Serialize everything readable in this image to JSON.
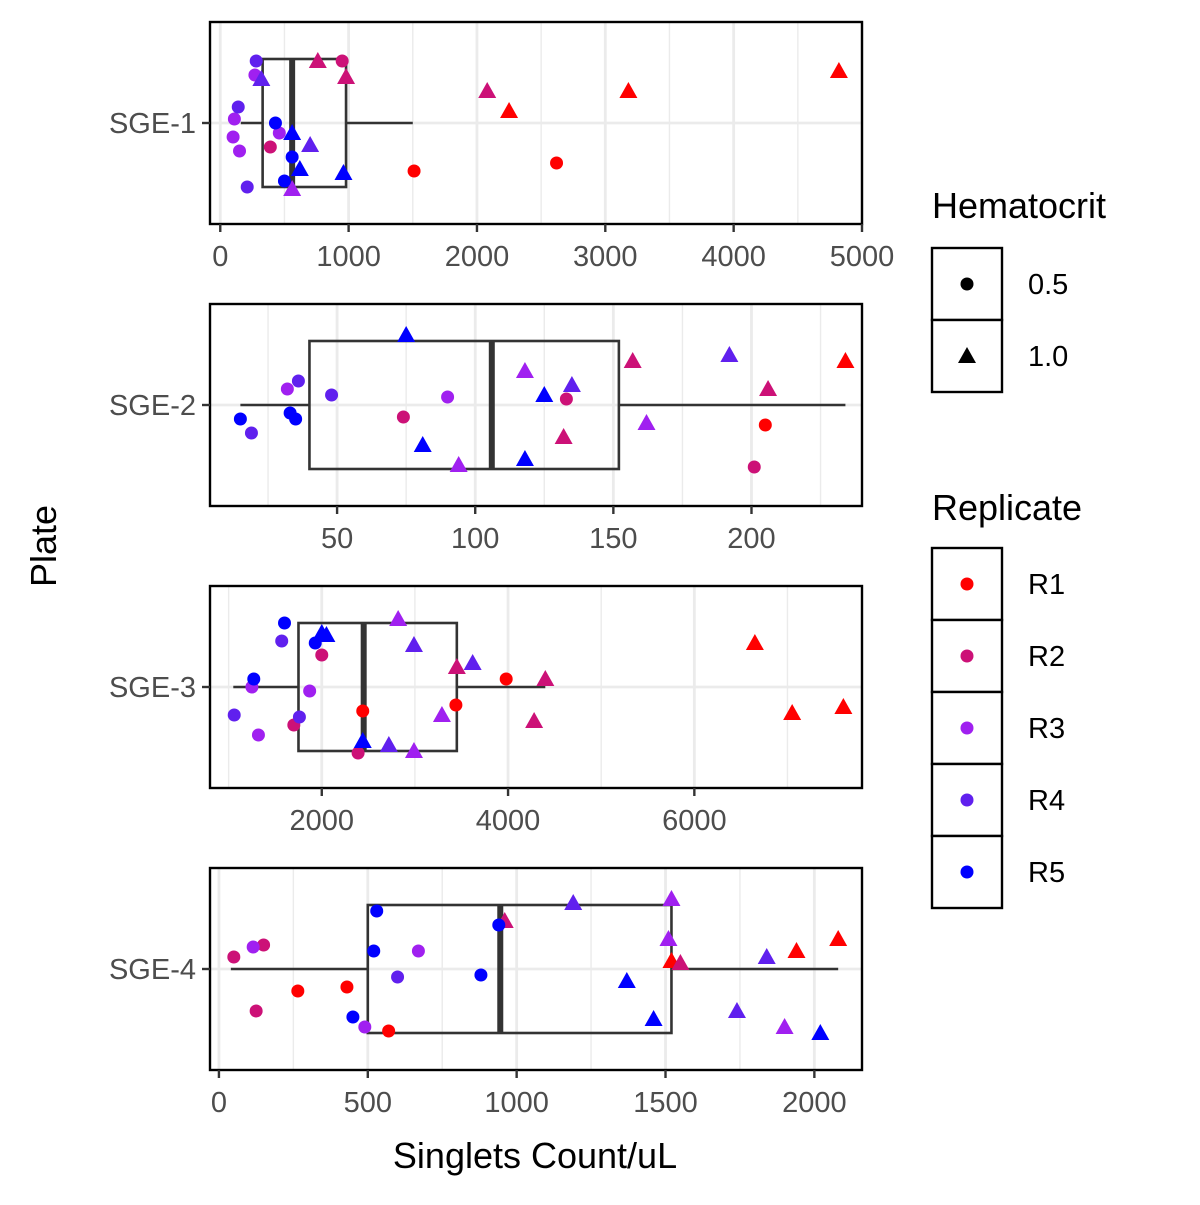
{
  "chart_data": {
    "type": "boxplot",
    "xlabel": "Singlets Count/uL",
    "ylabel": "Plate",
    "grid": true,
    "legend_position": "right",
    "legends": [
      {
        "title": "Hematocrit",
        "entries": [
          {
            "label": "0.5",
            "shape": "circle"
          },
          {
            "label": "1.0",
            "shape": "triangle"
          }
        ]
      },
      {
        "title": "Replicate",
        "entries": [
          {
            "label": "R1",
            "color": "#ff0000"
          },
          {
            "label": "R2",
            "color": "#cc1177"
          },
          {
            "label": "R3",
            "color": "#a020f0"
          },
          {
            "label": "R4",
            "color": "#6020ee"
          },
          {
            "label": "R5",
            "color": "#0000ff"
          }
        ]
      }
    ],
    "panels": [
      {
        "category": "SGE-1",
        "xlim": [
          -80,
          5000
        ],
        "x_ticks": [
          0,
          1000,
          2000,
          3000,
          4000,
          5000
        ],
        "x_tick_labels": [
          "0",
          "1000",
          "2000",
          "3000",
          "4000",
          "5000"
        ],
        "box": {
          "whisker_low": 160,
          "q1": 330,
          "median": 560,
          "q3": 980,
          "whisker_high": 1500
        },
        "points": [
          {
            "x": 4820,
            "jitter": 0.26,
            "hct": "1.0",
            "rep": "R1"
          },
          {
            "x": 3180,
            "jitter": 0.16,
            "hct": "1.0",
            "rep": "R1"
          },
          {
            "x": 2250,
            "jitter": 0.06,
            "hct": "1.0",
            "rep": "R1"
          },
          {
            "x": 1510,
            "jitter": -0.24,
            "hct": "0.5",
            "rep": "R1"
          },
          {
            "x": 2620,
            "jitter": -0.2,
            "hct": "0.5",
            "rep": "R1"
          },
          {
            "x": 2080,
            "jitter": 0.16,
            "hct": "1.0",
            "rep": "R2"
          },
          {
            "x": 760,
            "jitter": 0.31,
            "hct": "1.0",
            "rep": "R2"
          },
          {
            "x": 950,
            "jitter": 0.31,
            "hct": "0.5",
            "rep": "R2"
          },
          {
            "x": 980,
            "jitter": 0.23,
            "hct": "1.0",
            "rep": "R2"
          },
          {
            "x": 390,
            "jitter": -0.12,
            "hct": "0.5",
            "rep": "R2"
          },
          {
            "x": 270,
            "jitter": 0.24,
            "hct": "0.5",
            "rep": "R3"
          },
          {
            "x": 110,
            "jitter": 0.02,
            "hct": "0.5",
            "rep": "R3"
          },
          {
            "x": 100,
            "jitter": -0.07,
            "hct": "0.5",
            "rep": "R3"
          },
          {
            "x": 150,
            "jitter": -0.14,
            "hct": "0.5",
            "rep": "R3"
          },
          {
            "x": 460,
            "jitter": -0.05,
            "hct": "0.5",
            "rep": "R3"
          },
          {
            "x": 560,
            "jitter": -0.33,
            "hct": "1.0",
            "rep": "R3"
          },
          {
            "x": 280,
            "jitter": 0.31,
            "hct": "0.5",
            "rep": "R4"
          },
          {
            "x": 320,
            "jitter": 0.22,
            "hct": "1.0",
            "rep": "R4"
          },
          {
            "x": 140,
            "jitter": 0.08,
            "hct": "0.5",
            "rep": "R4"
          },
          {
            "x": 210,
            "jitter": -0.32,
            "hct": "0.5",
            "rep": "R4"
          },
          {
            "x": 700,
            "jitter": -0.11,
            "hct": "1.0",
            "rep": "R4"
          },
          {
            "x": 430,
            "jitter": 0.0,
            "hct": "0.5",
            "rep": "R5"
          },
          {
            "x": 560,
            "jitter": -0.05,
            "hct": "1.0",
            "rep": "R5"
          },
          {
            "x": 560,
            "jitter": -0.17,
            "hct": "0.5",
            "rep": "R5"
          },
          {
            "x": 500,
            "jitter": -0.29,
            "hct": "0.5",
            "rep": "R5"
          },
          {
            "x": 620,
            "jitter": -0.23,
            "hct": "1.0",
            "rep": "R5"
          },
          {
            "x": 960,
            "jitter": -0.25,
            "hct": "1.0",
            "rep": "R5"
          }
        ]
      },
      {
        "category": "SGE-2",
        "xlim": [
          4,
          240
        ],
        "x_ticks": [
          50,
          100,
          150,
          200
        ],
        "x_tick_labels": [
          "50",
          "100",
          "150",
          "200"
        ],
        "box": {
          "whisker_low": 15,
          "q1": 40,
          "median": 106,
          "q3": 152,
          "whisker_high": 234
        },
        "points": [
          {
            "x": 234,
            "jitter": 0.22,
            "hct": "1.0",
            "rep": "R1"
          },
          {
            "x": 205,
            "jitter": -0.1,
            "hct": "0.5",
            "rep": "R1"
          },
          {
            "x": 157,
            "jitter": 0.22,
            "hct": "1.0",
            "rep": "R2"
          },
          {
            "x": 206,
            "jitter": 0.08,
            "hct": "1.0",
            "rep": "R2"
          },
          {
            "x": 133,
            "jitter": 0.03,
            "hct": "0.5",
            "rep": "R2"
          },
          {
            "x": 132,
            "jitter": -0.16,
            "hct": "1.0",
            "rep": "R2"
          },
          {
            "x": 74,
            "jitter": -0.06,
            "hct": "0.5",
            "rep": "R2"
          },
          {
            "x": 201,
            "jitter": -0.31,
            "hct": "0.5",
            "rep": "R2"
          },
          {
            "x": 118,
            "jitter": 0.17,
            "hct": "1.0",
            "rep": "R3"
          },
          {
            "x": 90,
            "jitter": 0.04,
            "hct": "0.5",
            "rep": "R3"
          },
          {
            "x": 162,
            "jitter": -0.09,
            "hct": "1.0",
            "rep": "R3"
          },
          {
            "x": 94,
            "jitter": -0.3,
            "hct": "1.0",
            "rep": "R3"
          },
          {
            "x": 32,
            "jitter": 0.08,
            "hct": "0.5",
            "rep": "R3"
          },
          {
            "x": 192,
            "jitter": 0.25,
            "hct": "1.0",
            "rep": "R4"
          },
          {
            "x": 135,
            "jitter": 0.1,
            "hct": "1.0",
            "rep": "R4"
          },
          {
            "x": 48,
            "jitter": 0.05,
            "hct": "0.5",
            "rep": "R4"
          },
          {
            "x": 36,
            "jitter": 0.12,
            "hct": "0.5",
            "rep": "R4"
          },
          {
            "x": 19,
            "jitter": -0.14,
            "hct": "0.5",
            "rep": "R4"
          },
          {
            "x": 75,
            "jitter": 0.35,
            "hct": "1.0",
            "rep": "R5"
          },
          {
            "x": 125,
            "jitter": 0.05,
            "hct": "1.0",
            "rep": "R5"
          },
          {
            "x": 81,
            "jitter": -0.2,
            "hct": "1.0",
            "rep": "R5"
          },
          {
            "x": 118,
            "jitter": -0.27,
            "hct": "1.0",
            "rep": "R5"
          },
          {
            "x": 15,
            "jitter": -0.07,
            "hct": "0.5",
            "rep": "R5"
          },
          {
            "x": 33,
            "jitter": -0.04,
            "hct": "0.5",
            "rep": "R5"
          },
          {
            "x": 35,
            "jitter": -0.07,
            "hct": "0.5",
            "rep": "R5"
          }
        ]
      },
      {
        "category": "SGE-3",
        "xlim": [
          800,
          7800
        ],
        "x_ticks": [
          2000,
          4000,
          6000
        ],
        "x_tick_labels": [
          "2000",
          "4000",
          "6000"
        ],
        "box": {
          "whisker_low": 1050,
          "q1": 1750,
          "median": 2450,
          "q3": 3450,
          "whisker_high": 4400
        },
        "points": [
          {
            "x": 6650,
            "jitter": 0.22,
            "hct": "1.0",
            "rep": "R1"
          },
          {
            "x": 7050,
            "jitter": -0.13,
            "hct": "1.0",
            "rep": "R1"
          },
          {
            "x": 7600,
            "jitter": -0.1,
            "hct": "1.0",
            "rep": "R1"
          },
          {
            "x": 3980,
            "jitter": 0.04,
            "hct": "0.5",
            "rep": "R1"
          },
          {
            "x": 3440,
            "jitter": -0.09,
            "hct": "0.5",
            "rep": "R1"
          },
          {
            "x": 2440,
            "jitter": -0.12,
            "hct": "0.5",
            "rep": "R1"
          },
          {
            "x": 4400,
            "jitter": 0.04,
            "hct": "1.0",
            "rep": "R2"
          },
          {
            "x": 3450,
            "jitter": 0.1,
            "hct": "1.0",
            "rep": "R2"
          },
          {
            "x": 4280,
            "jitter": -0.17,
            "hct": "1.0",
            "rep": "R2"
          },
          {
            "x": 2000,
            "jitter": 0.16,
            "hct": "0.5",
            "rep": "R2"
          },
          {
            "x": 1700,
            "jitter": -0.19,
            "hct": "0.5",
            "rep": "R2"
          },
          {
            "x": 2390,
            "jitter": -0.33,
            "hct": "0.5",
            "rep": "R2"
          },
          {
            "x": 2820,
            "jitter": 0.34,
            "hct": "1.0",
            "rep": "R3"
          },
          {
            "x": 3290,
            "jitter": -0.14,
            "hct": "1.0",
            "rep": "R3"
          },
          {
            "x": 2990,
            "jitter": -0.32,
            "hct": "1.0",
            "rep": "R3"
          },
          {
            "x": 1320,
            "jitter": -0.24,
            "hct": "0.5",
            "rep": "R3"
          },
          {
            "x": 1250,
            "jitter": 0.0,
            "hct": "0.5",
            "rep": "R3"
          },
          {
            "x": 1870,
            "jitter": -0.02,
            "hct": "0.5",
            "rep": "R3"
          },
          {
            "x": 2990,
            "jitter": 0.21,
            "hct": "1.0",
            "rep": "R4"
          },
          {
            "x": 3620,
            "jitter": 0.12,
            "hct": "1.0",
            "rep": "R4"
          },
          {
            "x": 2720,
            "jitter": -0.29,
            "hct": "1.0",
            "rep": "R4"
          },
          {
            "x": 1570,
            "jitter": 0.23,
            "hct": "0.5",
            "rep": "R4"
          },
          {
            "x": 1060,
            "jitter": -0.14,
            "hct": "0.5",
            "rep": "R4"
          },
          {
            "x": 1760,
            "jitter": -0.15,
            "hct": "0.5",
            "rep": "R4"
          },
          {
            "x": 1600,
            "jitter": 0.32,
            "hct": "0.5",
            "rep": "R5"
          },
          {
            "x": 1930,
            "jitter": 0.22,
            "hct": "0.5",
            "rep": "R5"
          },
          {
            "x": 2000,
            "jitter": 0.27,
            "hct": "1.0",
            "rep": "R5"
          },
          {
            "x": 2050,
            "jitter": 0.26,
            "hct": "1.0",
            "rep": "R5"
          },
          {
            "x": 1270,
            "jitter": 0.04,
            "hct": "0.5",
            "rep": "R5"
          },
          {
            "x": 2440,
            "jitter": -0.27,
            "hct": "1.0",
            "rep": "R5"
          }
        ]
      },
      {
        "category": "SGE-4",
        "xlim": [
          -30,
          2160
        ],
        "x_ticks": [
          0,
          500,
          1000,
          1500,
          2000
        ],
        "x_tick_labels": [
          "0",
          "500",
          "1000",
          "1500",
          "2000"
        ],
        "box": {
          "whisker_low": 40,
          "q1": 500,
          "median": 945,
          "q3": 1520,
          "whisker_high": 2080
        },
        "points": [
          {
            "x": 2080,
            "jitter": 0.15,
            "hct": "1.0",
            "rep": "R1"
          },
          {
            "x": 1940,
            "jitter": 0.09,
            "hct": "1.0",
            "rep": "R1"
          },
          {
            "x": 1520,
            "jitter": 0.04,
            "hct": "1.0",
            "rep": "R1"
          },
          {
            "x": 430,
            "jitter": -0.09,
            "hct": "0.5",
            "rep": "R1"
          },
          {
            "x": 265,
            "jitter": -0.11,
            "hct": "0.5",
            "rep": "R1"
          },
          {
            "x": 570,
            "jitter": -0.31,
            "hct": "0.5",
            "rep": "R1"
          },
          {
            "x": 960,
            "jitter": 0.24,
            "hct": "1.0",
            "rep": "R2"
          },
          {
            "x": 1550,
            "jitter": 0.03,
            "hct": "1.0",
            "rep": "R2"
          },
          {
            "x": 50,
            "jitter": 0.06,
            "hct": "0.5",
            "rep": "R2"
          },
          {
            "x": 150,
            "jitter": 0.12,
            "hct": "0.5",
            "rep": "R2"
          },
          {
            "x": 125,
            "jitter": -0.21,
            "hct": "0.5",
            "rep": "R2"
          },
          {
            "x": 1520,
            "jitter": 0.35,
            "hct": "1.0",
            "rep": "R3"
          },
          {
            "x": 1510,
            "jitter": 0.15,
            "hct": "1.0",
            "rep": "R3"
          },
          {
            "x": 1900,
            "jitter": -0.29,
            "hct": "1.0",
            "rep": "R3"
          },
          {
            "x": 670,
            "jitter": 0.09,
            "hct": "0.5",
            "rep": "R3"
          },
          {
            "x": 115,
            "jitter": 0.11,
            "hct": "0.5",
            "rep": "R3"
          },
          {
            "x": 490,
            "jitter": -0.29,
            "hct": "0.5",
            "rep": "R3"
          },
          {
            "x": 1190,
            "jitter": 0.33,
            "hct": "1.0",
            "rep": "R4"
          },
          {
            "x": 1840,
            "jitter": 0.06,
            "hct": "1.0",
            "rep": "R4"
          },
          {
            "x": 1740,
            "jitter": -0.21,
            "hct": "1.0",
            "rep": "R4"
          },
          {
            "x": 600,
            "jitter": -0.04,
            "hct": "0.5",
            "rep": "R4"
          },
          {
            "x": 530,
            "jitter": 0.29,
            "hct": "0.5",
            "rep": "R5"
          },
          {
            "x": 520,
            "jitter": 0.09,
            "hct": "0.5",
            "rep": "R5"
          },
          {
            "x": 940,
            "jitter": 0.22,
            "hct": "0.5",
            "rep": "R5"
          },
          {
            "x": 880,
            "jitter": -0.03,
            "hct": "0.5",
            "rep": "R5"
          },
          {
            "x": 1370,
            "jitter": -0.06,
            "hct": "1.0",
            "rep": "R5"
          },
          {
            "x": 1460,
            "jitter": -0.25,
            "hct": "1.0",
            "rep": "R5"
          },
          {
            "x": 2020,
            "jitter": -0.32,
            "hct": "1.0",
            "rep": "R5"
          },
          {
            "x": 450,
            "jitter": -0.24,
            "hct": "0.5",
            "rep": "R5"
          }
        ]
      }
    ]
  }
}
